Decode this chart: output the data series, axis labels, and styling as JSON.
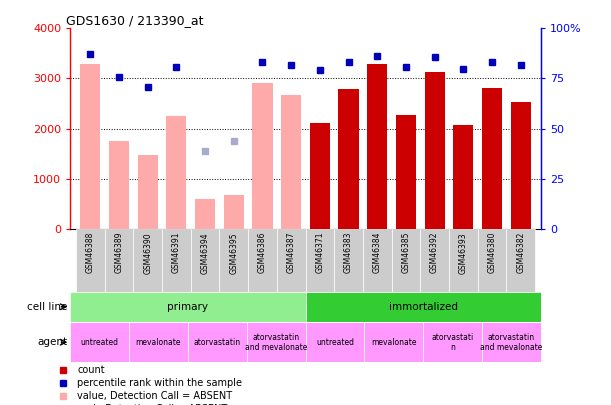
{
  "title": "GDS1630 / 213390_at",
  "samples": [
    "GSM46388",
    "GSM46389",
    "GSM46390",
    "GSM46391",
    "GSM46394",
    "GSM46395",
    "GSM46386",
    "GSM46387",
    "GSM46371",
    "GSM46383",
    "GSM46384",
    "GSM46385",
    "GSM46392",
    "GSM46393",
    "GSM46380",
    "GSM46382"
  ],
  "bar_values": [
    3280,
    1750,
    1480,
    2250,
    600,
    670,
    2900,
    2680,
    2120,
    2790,
    3290,
    2280,
    3120,
    2080,
    2800,
    2540
  ],
  "bar_absent": [
    true,
    true,
    true,
    true,
    true,
    true,
    true,
    true,
    false,
    false,
    false,
    false,
    false,
    false,
    false,
    false
  ],
  "percentile_as_pct": [
    87,
    75.5,
    70.5,
    80.7,
    39,
    44,
    83.2,
    81.7,
    79,
    83.2,
    86,
    80.7,
    85.5,
    79.7,
    83,
    81.7
  ],
  "percentile_absent": [
    false,
    false,
    false,
    false,
    true,
    true,
    false,
    false,
    false,
    false,
    false,
    false,
    false,
    false,
    false,
    false
  ],
  "cell_line_groups": [
    {
      "label": "primary",
      "start": 0,
      "end": 8,
      "color": "#90EE90"
    },
    {
      "label": "immortalized",
      "start": 8,
      "end": 16,
      "color": "#33CC33"
    }
  ],
  "agent_groups": [
    {
      "label": "untreated",
      "start": 0,
      "end": 2
    },
    {
      "label": "mevalonate",
      "start": 2,
      "end": 4
    },
    {
      "label": "atorvastatin",
      "start": 4,
      "end": 6
    },
    {
      "label": "atorvastatin\nand mevalonate",
      "start": 6,
      "end": 8
    },
    {
      "label": "untreated",
      "start": 8,
      "end": 10
    },
    {
      "label": "mevalonate",
      "start": 10,
      "end": 12
    },
    {
      "label": "atorvastati\nn",
      "start": 12,
      "end": 14
    },
    {
      "label": "atorvastatin\nand mevalonate",
      "start": 14,
      "end": 16
    }
  ],
  "agent_color": "#FF99FF",
  "bar_color_present": "#CC0000",
  "bar_color_absent": "#FFAAAA",
  "dot_color_present": "#0000BB",
  "dot_color_absent": "#AAAACC",
  "ylim_left": [
    0,
    4000
  ],
  "ylim_right": [
    0,
    100
  ],
  "yticks_left": [
    0,
    1000,
    2000,
    3000,
    4000
  ],
  "yticks_right": [
    0,
    25,
    50,
    75,
    100
  ],
  "legend_items": [
    {
      "color": "#CC0000",
      "label": "count"
    },
    {
      "color": "#0000BB",
      "label": "percentile rank within the sample"
    },
    {
      "color": "#FFAAAA",
      "label": "value, Detection Call = ABSENT"
    },
    {
      "color": "#AAAACC",
      "label": "rank, Detection Call = ABSENT"
    }
  ]
}
